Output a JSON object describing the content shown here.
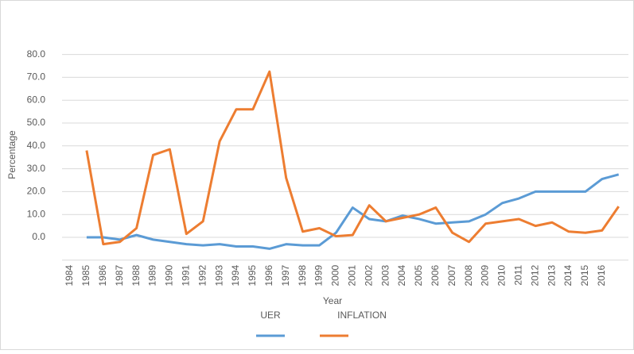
{
  "chart_data": {
    "type": "line",
    "x_label": "Year",
    "y_label": "Percentage",
    "categories": [
      "1984",
      "1985",
      "1986",
      "1987",
      "1988",
      "1989",
      "1990",
      "1991",
      "1992",
      "1993",
      "1994",
      "1995",
      "1996",
      "1997",
      "1998",
      "1999",
      "2000",
      "2001",
      "2002",
      "2003",
      "2004",
      "2005",
      "2006",
      "2007",
      "2008",
      "2009",
      "2010",
      "2011",
      "2012",
      "2013",
      "2014",
      "2015",
      "2016",
      null
    ],
    "series": [
      {
        "name": "UER",
        "color": "#5b9bd5",
        "values": [
          null,
          0,
          0,
          -1,
          1,
          -1,
          -2,
          -3,
          -3.5,
          -3,
          -4,
          -4,
          -5,
          -3,
          -3.5,
          -3.5,
          2,
          13,
          8,
          7,
          9.5,
          8,
          6,
          6.5,
          7,
          10,
          15,
          17,
          20,
          20,
          20,
          20,
          25.5,
          27.5
        ]
      },
      {
        "name": "INFLATION",
        "color": "#ed7d31",
        "values": [
          null,
          38,
          -3,
          -2,
          4,
          36,
          38.5,
          1.5,
          7,
          42,
          56,
          56,
          72.5,
          26,
          2.5,
          4,
          0.5,
          1,
          14,
          7,
          8.5,
          10,
          13,
          2,
          -2,
          6,
          7,
          8,
          5,
          6.5,
          2.5,
          2,
          3,
          13.5
        ]
      }
    ],
    "ylim": [
      -10,
      85
    ],
    "yticks": [
      {
        "value": 0,
        "label": "0.0"
      },
      {
        "value": 10,
        "label": "10.0"
      },
      {
        "value": 20,
        "label": "20.0"
      },
      {
        "value": 30,
        "label": "30.0"
      },
      {
        "value": 40,
        "label": "40.0"
      },
      {
        "value": 50,
        "label": "50.0"
      },
      {
        "value": 60,
        "label": "60.0"
      },
      {
        "value": 70,
        "label": "70.0"
      },
      {
        "value": 80,
        "label": "80.0"
      }
    ],
    "grid": true,
    "legend": "bottom"
  }
}
